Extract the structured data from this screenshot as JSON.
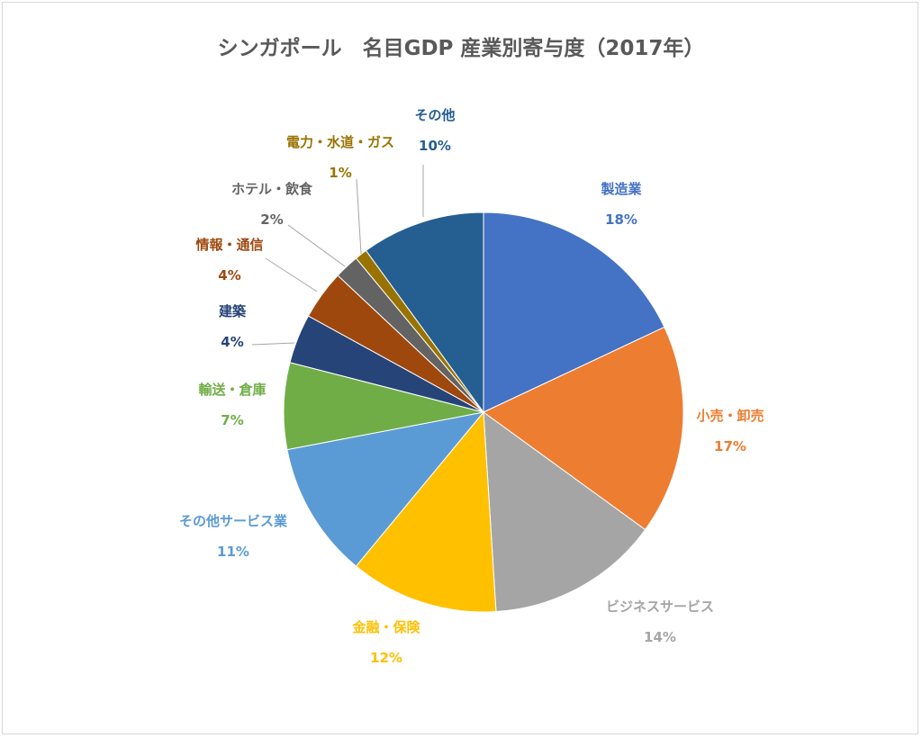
{
  "chart_data": {
    "type": "pie",
    "title": "シンガポール　名目GDP 産業別寄与度（2017年）",
    "slices": [
      {
        "label": "製造業",
        "value": 18,
        "percent_label": "18%",
        "color": "#4472C4"
      },
      {
        "label": "小売・卸売",
        "value": 17,
        "percent_label": "17%",
        "color": "#ED7D31"
      },
      {
        "label": "ビジネスサービス",
        "value": 14,
        "percent_label": "14%",
        "color": "#A5A5A5"
      },
      {
        "label": "金融・保険",
        "value": 12,
        "percent_label": "12%",
        "color": "#FFC000"
      },
      {
        "label": "その他サービス業",
        "value": 11,
        "percent_label": "11%",
        "color": "#5B9BD5"
      },
      {
        "label": "輸送・倉庫",
        "value": 7,
        "percent_label": "7%",
        "color": "#70AD47"
      },
      {
        "label": "建築",
        "value": 4,
        "percent_label": "4%",
        "color": "#264478"
      },
      {
        "label": "情報・通信",
        "value": 4,
        "percent_label": "4%",
        "color": "#9E480E"
      },
      {
        "label": "ホテル・飲食",
        "value": 2,
        "percent_label": "2%",
        "color": "#636363"
      },
      {
        "label": "電力・水道・ガス",
        "value": 1,
        "percent_label": "1%",
        "color": "#997300"
      },
      {
        "label": "その他",
        "value": 10,
        "percent_label": "10%",
        "color": "#255E91"
      }
    ]
  }
}
